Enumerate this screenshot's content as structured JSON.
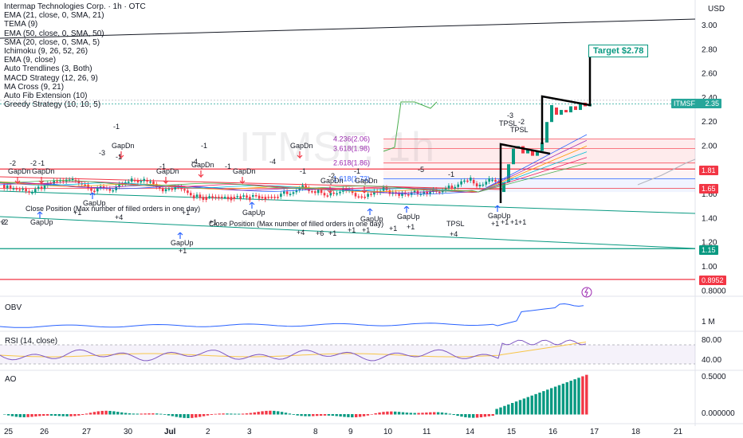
{
  "header": {
    "title": "Intermap Technologies Corp. · 1h · OTC",
    "currency": "USD",
    "watermark": "ITMSF, 1h"
  },
  "indicators": [
    "EMA (21, close, 0, SMA, 21)",
    "TEMA (9)",
    "EMA (50, close, 0, SMA, 50)",
    "SMA (20, close, 0, SMA, 5)",
    "Ichimoku (9, 26, 52, 26)",
    "EMA (9, close)",
    "Auto Trendlines (3, Both)",
    "MACD Strategy (12, 26, 9)",
    "MA Cross (9, 21)",
    "Auto Fib Extension (10)",
    "Greedy Strategy (10, 10, 5)"
  ],
  "price_tags": [
    {
      "label": "ITMSF",
      "value": "2.35",
      "color": "#26a69a"
    },
    {
      "label": "",
      "value": "1.81",
      "color": "#f23645"
    },
    {
      "label": "",
      "value": "1.65",
      "color": "#f23645"
    },
    {
      "label": "",
      "value": "1.15",
      "color": "#089981"
    },
    {
      "label": "",
      "value": "0.8952",
      "color": "#f23645"
    }
  ],
  "target": "Target $2.78",
  "panes": {
    "obv": "OBV",
    "rsi": "RSI (14, close)",
    "ao": "AO"
  },
  "chart_data": {
    "type": "candlestick",
    "price_axis": {
      "ticks": [
        "3.00",
        "2.80",
        "2.60",
        "2.40",
        "2.20",
        "2.00",
        "1.80",
        "1.60",
        "1.40",
        "1.20",
        "1.00",
        "0.8000"
      ],
      "tick_values": [
        3.0,
        2.8,
        2.6,
        2.4,
        2.2,
        2.0,
        1.8,
        1.6,
        1.4,
        1.2,
        1.0,
        0.8
      ]
    },
    "obv_axis": {
      "ticks": [
        "1 M"
      ]
    },
    "rsi_axis": {
      "ticks": [
        "80.00",
        "40.00"
      ],
      "tick_values": [
        80,
        40
      ]
    },
    "ao_axis": {
      "ticks": [
        "0.5000",
        "0.000000"
      ],
      "tick_values": [
        0.5,
        0.0
      ]
    },
    "x_ticks": [
      "25",
      "26",
      "27",
      "30",
      "Jul",
      "2",
      "3",
      "8",
      "9",
      "10",
      "11",
      "14",
      "15",
      "16",
      "17",
      "18",
      "21"
    ],
    "fib_levels": [
      {
        "label": "4.236(2.06)",
        "value": 2.06
      },
      {
        "label": "3.618(1.98)",
        "value": 1.98
      },
      {
        "label": "2.618(1.86)",
        "value": 1.86
      },
      {
        "label": "1.618(1.73)",
        "value": 1.73
      }
    ],
    "horizontal_levels": [
      1.81,
      1.65,
      1.15,
      0.8952
    ],
    "last_price": 2.35,
    "target_price": 2.78,
    "signal_labels": [
      "GapDn",
      "GapDn",
      "GapDn",
      "GapDn",
      "GapDn",
      "GapDn",
      "GapDn",
      "GapDn",
      "GapDn",
      "GapUp",
      "GapUp",
      "GapUp",
      "GapUp",
      "GapUp",
      "GapUp",
      "GapUp",
      "TPSL",
      "TPSL",
      "TPSL",
      "Close Position (Max number of filled orders in one day)",
      "Close Position (Max number of filled orders in one day)"
    ],
    "signal_numbers": [
      "-2",
      "-2",
      "-1",
      "-1",
      "-1",
      "-3",
      "-1",
      "-1",
      "-4",
      "-1",
      "-4",
      "-1",
      "-1",
      "-2",
      "-5",
      "-1",
      "-3",
      "-2",
      "+1",
      "+1",
      "+2",
      "+4",
      "+1",
      "+4",
      "+6",
      "+1",
      "+1",
      "+1",
      "+1",
      "+1",
      "+1",
      "+1",
      "+4",
      "+1",
      "+1",
      "+1",
      "2"
    ]
  }
}
